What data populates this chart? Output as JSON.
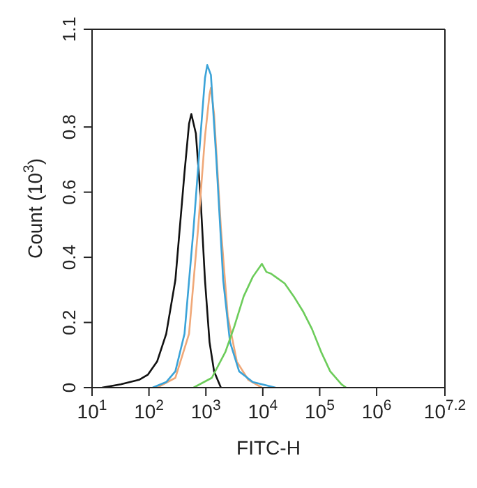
{
  "chart_data": {
    "type": "line",
    "xlabel": "FITC-H",
    "ylabel": "Count (10$^{3}$)",
    "log": "x",
    "grid": false,
    "legend": false,
    "marker": "none",
    "line_style": "solid",
    "xlim": [
      10,
      15848932
    ],
    "xticks": [
      {
        "value": 10,
        "label": "10$^{1}$"
      },
      {
        "value": 100,
        "label": "10$^{2}$"
      },
      {
        "value": 1000,
        "label": "10$^{3}$"
      },
      {
        "value": 10000,
        "label": "10$^{4}$"
      },
      {
        "value": 100000,
        "label": "10$^{5}$"
      },
      {
        "value": 1000000,
        "label": "10$^{6}$"
      },
      {
        "value": 15848932,
        "label": "10$^{7.2}$"
      }
    ],
    "ylim": [
      0,
      1.1
    ],
    "yticks": [
      0,
      0.2,
      0.4,
      0.6,
      0.8,
      1.1
    ],
    "series": [
      {
        "color": "#111111",
        "x": [
          15,
          32,
          67,
          96,
          139,
          201,
          291,
          421,
          506,
          555,
          667,
          802,
          964,
          1159,
          1393,
          1837
        ],
        "values": [
          0,
          0.01,
          0.024,
          0.04,
          0.08,
          0.165,
          0.33,
          0.66,
          0.81,
          0.84,
          0.78,
          0.59,
          0.33,
          0.14,
          0.05,
          0
        ]
      },
      {
        "color": "#f0a878",
        "x": [
          139,
          291,
          506,
          731,
          964,
          1159,
          1225,
          1393,
          1837,
          2421,
          3499,
          5546,
          9638
        ],
        "values": [
          0,
          0.03,
          0.165,
          0.49,
          0.77,
          0.9,
          0.92,
          0.84,
          0.49,
          0.22,
          0.08,
          0.024,
          0
        ]
      },
      {
        "color": "#3ba3d8",
        "x": [
          116,
          201,
          291,
          421,
          608,
          802,
          964,
          1057,
          1225,
          1528,
          2014,
          2655,
          3837,
          6668,
          16749
        ],
        "values": [
          0,
          0.017,
          0.05,
          0.165,
          0.49,
          0.77,
          0.95,
          0.99,
          0.96,
          0.7,
          0.33,
          0.14,
          0.05,
          0.017,
          0
        ]
      },
      {
        "color": "#6ccc5a",
        "x": [
          608,
          1271,
          2208,
          3192,
          4613,
          6668,
          9638,
          11588,
          13932,
          16749,
          24210,
          34995,
          50582,
          73114,
          105682,
          152757,
          242103,
          291072
        ],
        "values": [
          0,
          0.03,
          0.11,
          0.19,
          0.28,
          0.34,
          0.38,
          0.355,
          0.35,
          0.34,
          0.32,
          0.28,
          0.235,
          0.18,
          0.11,
          0.05,
          0.01,
          0
        ]
      }
    ]
  }
}
